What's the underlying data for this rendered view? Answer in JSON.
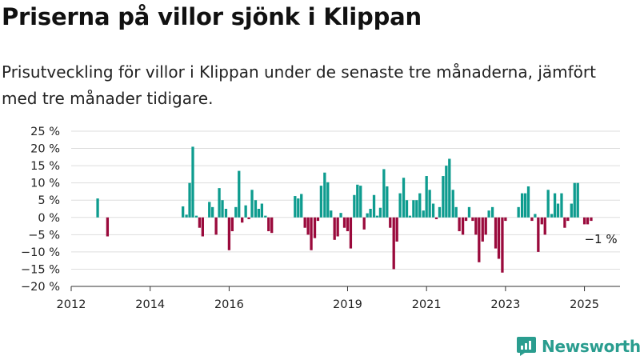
{
  "title": "Priserna på villor sjönk i Klippan",
  "subtitle_line1": "Prisutveckling för villor i Klippan under de senaste tre månaderna, jämfört",
  "subtitle_line2": "med tre månader tidigare.",
  "brand": {
    "name": "Newsworthy",
    "logo_icon": "newsworthy-logo-icon",
    "color": "#2a9d8f"
  },
  "colors": {
    "positive": "#0e9c8f",
    "negative": "#9a0a3c",
    "grid": "#dddddd",
    "axis": "#333333"
  },
  "chart_data": {
    "type": "bar",
    "title": "Priserna på villor sjönk i Klippan",
    "xlabel": "",
    "ylabel": "",
    "ylim": [
      -20,
      25
    ],
    "yticks": [
      -20,
      -15,
      -10,
      -5,
      0,
      5,
      10,
      15,
      20,
      25
    ],
    "ytick_labels": [
      "−20 %",
      "−15 %",
      "−10 %",
      "−5 %",
      "0 %",
      "5 %",
      "10 %",
      "15 %",
      "20 %",
      "25 %"
    ],
    "xlim": [
      2012,
      2025.9
    ],
    "xticks": [
      2012,
      2014,
      2016,
      2019,
      2021,
      2023,
      2025
    ],
    "xtick_labels": [
      "2012",
      "2014",
      "2016",
      "2019",
      "2021",
      "2023",
      "2025"
    ],
    "grid": true,
    "annotation": {
      "text": "−1 %",
      "x": 2025.2,
      "y": -1
    },
    "points": [
      {
        "x": 2012.67,
        "y": 5.5
      },
      {
        "x": 2012.92,
        "y": -5.5
      },
      {
        "x": 2014.83,
        "y": 3.2
      },
      {
        "x": 2014.92,
        "y": 0.8
      },
      {
        "x": 2015.0,
        "y": 10
      },
      {
        "x": 2015.08,
        "y": 20.5
      },
      {
        "x": 2015.17,
        "y": 0.5
      },
      {
        "x": 2015.25,
        "y": -3
      },
      {
        "x": 2015.33,
        "y": -5.5
      },
      {
        "x": 2015.5,
        "y": 4.5
      },
      {
        "x": 2015.58,
        "y": 3
      },
      {
        "x": 2015.67,
        "y": -5
      },
      {
        "x": 2015.75,
        "y": 8.5
      },
      {
        "x": 2015.83,
        "y": 5
      },
      {
        "x": 2015.92,
        "y": 2.5
      },
      {
        "x": 2016.0,
        "y": -9.5
      },
      {
        "x": 2016.08,
        "y": -4
      },
      {
        "x": 2016.17,
        "y": 3
      },
      {
        "x": 2016.25,
        "y": 13.5
      },
      {
        "x": 2016.33,
        "y": -1.5
      },
      {
        "x": 2016.42,
        "y": 3.5
      },
      {
        "x": 2016.5,
        "y": -0.5
      },
      {
        "x": 2016.58,
        "y": 8
      },
      {
        "x": 2016.67,
        "y": 5
      },
      {
        "x": 2016.75,
        "y": 2.5
      },
      {
        "x": 2016.83,
        "y": 4
      },
      {
        "x": 2016.92,
        "y": 0.5
      },
      {
        "x": 2017.0,
        "y": -4
      },
      {
        "x": 2017.08,
        "y": -4.5
      },
      {
        "x": 2017.67,
        "y": 6.2
      },
      {
        "x": 2017.75,
        "y": 5.5
      },
      {
        "x": 2017.83,
        "y": 6.8
      },
      {
        "x": 2017.92,
        "y": -3
      },
      {
        "x": 2018.0,
        "y": -5
      },
      {
        "x": 2018.08,
        "y": -9.5
      },
      {
        "x": 2018.17,
        "y": -6
      },
      {
        "x": 2018.25,
        "y": -1
      },
      {
        "x": 2018.33,
        "y": 9.2
      },
      {
        "x": 2018.42,
        "y": 13
      },
      {
        "x": 2018.5,
        "y": 10.2
      },
      {
        "x": 2018.58,
        "y": 2
      },
      {
        "x": 2018.67,
        "y": -6.5
      },
      {
        "x": 2018.75,
        "y": -5.5
      },
      {
        "x": 2018.83,
        "y": 1.3
      },
      {
        "x": 2018.92,
        "y": -3
      },
      {
        "x": 2019.0,
        "y": -4
      },
      {
        "x": 2019.08,
        "y": -9
      },
      {
        "x": 2019.17,
        "y": 6.5
      },
      {
        "x": 2019.25,
        "y": 9.5
      },
      {
        "x": 2019.33,
        "y": 9.2
      },
      {
        "x": 2019.42,
        "y": -3.5
      },
      {
        "x": 2019.5,
        "y": 1.2
      },
      {
        "x": 2019.58,
        "y": 2.5
      },
      {
        "x": 2019.67,
        "y": 6.5
      },
      {
        "x": 2019.75,
        "y": 0.5
      },
      {
        "x": 2019.83,
        "y": 2.8
      },
      {
        "x": 2019.92,
        "y": 14
      },
      {
        "x": 2020.0,
        "y": 9
      },
      {
        "x": 2020.08,
        "y": -3
      },
      {
        "x": 2020.17,
        "y": -15
      },
      {
        "x": 2020.25,
        "y": -7
      },
      {
        "x": 2020.33,
        "y": 7
      },
      {
        "x": 2020.42,
        "y": 11.5
      },
      {
        "x": 2020.5,
        "y": 5
      },
      {
        "x": 2020.58,
        "y": 0.5
      },
      {
        "x": 2020.67,
        "y": 5
      },
      {
        "x": 2020.75,
        "y": 5
      },
      {
        "x": 2020.83,
        "y": 7
      },
      {
        "x": 2020.92,
        "y": 2
      },
      {
        "x": 2021.0,
        "y": 12
      },
      {
        "x": 2021.08,
        "y": 8
      },
      {
        "x": 2021.17,
        "y": 4
      },
      {
        "x": 2021.25,
        "y": -0.5
      },
      {
        "x": 2021.33,
        "y": 3
      },
      {
        "x": 2021.42,
        "y": 12
      },
      {
        "x": 2021.5,
        "y": 15
      },
      {
        "x": 2021.58,
        "y": 17
      },
      {
        "x": 2021.67,
        "y": 8
      },
      {
        "x": 2021.75,
        "y": 3
      },
      {
        "x": 2021.83,
        "y": -4
      },
      {
        "x": 2021.92,
        "y": -5
      },
      {
        "x": 2022.0,
        "y": -1
      },
      {
        "x": 2022.08,
        "y": 3
      },
      {
        "x": 2022.17,
        "y": -1
      },
      {
        "x": 2022.25,
        "y": -5
      },
      {
        "x": 2022.33,
        "y": -13
      },
      {
        "x": 2022.42,
        "y": -7
      },
      {
        "x": 2022.5,
        "y": -5
      },
      {
        "x": 2022.58,
        "y": 2
      },
      {
        "x": 2022.67,
        "y": 3
      },
      {
        "x": 2022.75,
        "y": -9
      },
      {
        "x": 2022.83,
        "y": -12
      },
      {
        "x": 2022.92,
        "y": -16
      },
      {
        "x": 2023.0,
        "y": -1
      },
      {
        "x": 2023.33,
        "y": 3
      },
      {
        "x": 2023.42,
        "y": 7
      },
      {
        "x": 2023.5,
        "y": 7
      },
      {
        "x": 2023.58,
        "y": 9
      },
      {
        "x": 2023.67,
        "y": -1
      },
      {
        "x": 2023.75,
        "y": 1
      },
      {
        "x": 2023.83,
        "y": -10
      },
      {
        "x": 2023.92,
        "y": -2
      },
      {
        "x": 2024.0,
        "y": -5
      },
      {
        "x": 2024.08,
        "y": 8
      },
      {
        "x": 2024.17,
        "y": 1
      },
      {
        "x": 2024.25,
        "y": 7
      },
      {
        "x": 2024.33,
        "y": 4
      },
      {
        "x": 2024.42,
        "y": 7
      },
      {
        "x": 2024.5,
        "y": -3
      },
      {
        "x": 2024.58,
        "y": -1
      },
      {
        "x": 2024.67,
        "y": 4
      },
      {
        "x": 2024.75,
        "y": 10
      },
      {
        "x": 2024.83,
        "y": 10
      },
      {
        "x": 2024.92,
        "y": 0
      },
      {
        "x": 2025.0,
        "y": -2
      },
      {
        "x": 2025.08,
        "y": -2
      },
      {
        "x": 2025.17,
        "y": -1
      }
    ]
  }
}
